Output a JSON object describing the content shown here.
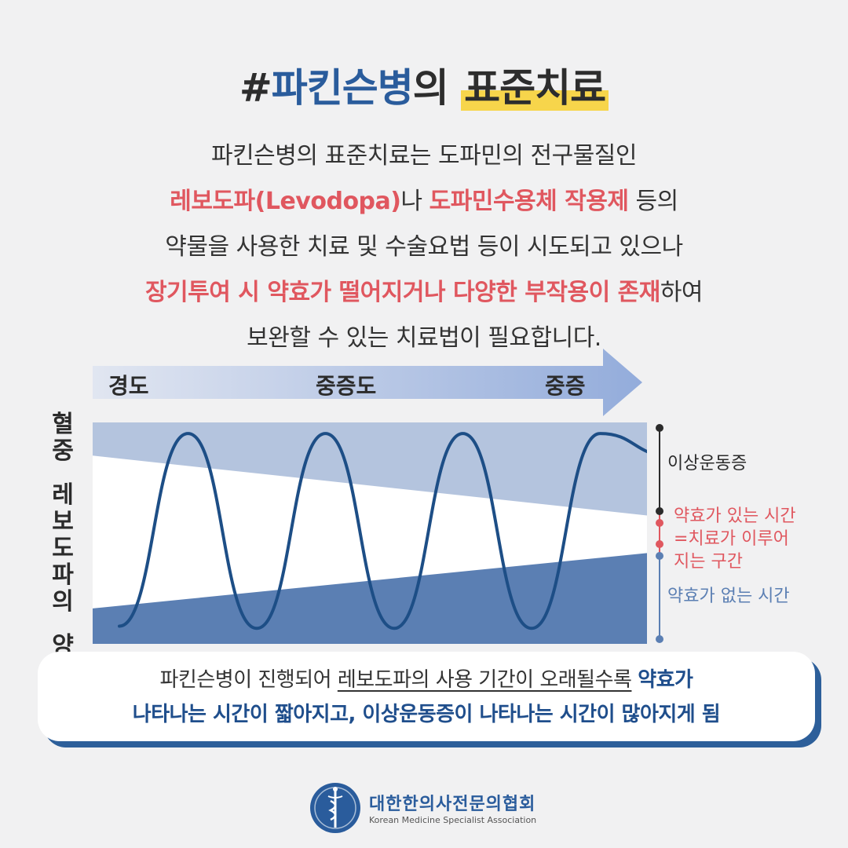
{
  "title": {
    "hash": "#",
    "part1": "파킨슨병",
    "part2": "의 ",
    "part3": "표준치료"
  },
  "intro": {
    "line1": "파킨슨병의 표준치료는 도파민의 전구물질인",
    "line2_red1": "레보도파(Levodopa)",
    "line2_mid": "나 ",
    "line2_red2": "도파민수용체 작용제",
    "line2_end": " 등의",
    "line3": "약물을 사용한 치료 및 수술요법 등이 시도되고 있으나",
    "line4_red": "장기투여 시 약효가 떨어지거나 다양한 부작용이 존재",
    "line4_end": "하여",
    "line5": "보완할 수 있는 치료법이 필요합니다."
  },
  "chart_data": {
    "type": "line",
    "severity_stages": [
      "경도",
      "중증도",
      "중증"
    ],
    "ylabel": "혈중 레보도파의 양",
    "zones": [
      {
        "name": "이상운동증",
        "color": "#b4c4de"
      },
      {
        "name": "약효가 있는 시간=치료가 이루어지는 구간",
        "color": "#ffffff"
      },
      {
        "name": "약효가 없는 시간",
        "color": "#5b7fb3"
      }
    ],
    "zone_boundaries": {
      "upper": {
        "start": 0.85,
        "end": 0.58
      },
      "lower": {
        "start": 0.16,
        "end": 0.41
      }
    },
    "series": [
      {
        "color": "#1d4e86",
        "cycles": 4
      }
    ],
    "x": [
      0,
      1,
      2,
      3,
      4,
      5,
      6,
      7,
      8
    ],
    "values": [
      0.08,
      0.95,
      0.07,
      0.95,
      0.07,
      0.95,
      0.07,
      0.95,
      0.85
    ]
  },
  "legend": {
    "dyskinesia": "이상운동증",
    "effective1": "약효가 있는 시간",
    "effective2": "=치료가 이루어",
    "effective3": "지는 구간",
    "ineffective": "약효가 없는 시간",
    "colors": {
      "black": "#2b2b2b",
      "red": "#e0575f",
      "blue": "#5b7fb3"
    }
  },
  "summary": {
    "l1_a": "파킨슨병이 진행되어 ",
    "l1_ul": "레보도파의 사용 기간이 오래될수록",
    "l1_b": " ",
    "l1_bold": "약효가",
    "l2_bold": "나타나는 시간이 짧아지고, 이상운동증이 나타나는 시간이 많아지게 됨"
  },
  "footer": {
    "name": "대한한의사전문의협회",
    "sub": "Korean Medicine Specialist Association",
    "logo_icon": "caduceus-icon"
  }
}
